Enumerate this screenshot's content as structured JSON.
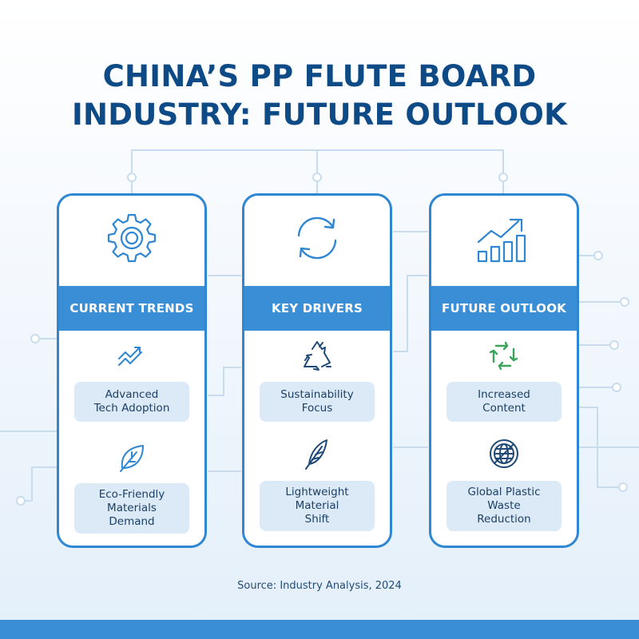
{
  "title": {
    "line1": "CHINA’S PP FLUTE BOARD",
    "line2": "INDUSTRY: FUTURE OUTLOOK"
  },
  "colors": {
    "title": "#0d4a86",
    "accent": "#3a8ed6",
    "card_border": "#2f86d2",
    "pill_bg": "#dceaf7",
    "circuit": "#c9dced",
    "icon_green": "#3aa55a"
  },
  "columns": [
    {
      "header": "CURRENT TRENDS",
      "top_icon": "gear-icon",
      "items": [
        {
          "icon": "trend-up-arrows-icon",
          "label": "Advanced\nTech Adoption"
        },
        {
          "icon": "leaf-icon",
          "label": "Eco-Friendly\nMaterials\nDemand"
        }
      ]
    },
    {
      "header": "KEY DRIVERS",
      "top_icon": "refresh-arrows-icon",
      "items": [
        {
          "icon": "recycle-icon",
          "label": "Sustainability\nFocus"
        },
        {
          "icon": "feather-icon",
          "label": "Lightweight\nMaterial\nShift"
        }
      ]
    },
    {
      "header": "FUTURE OUTLOOK",
      "top_icon": "growth-chart-icon",
      "items": [
        {
          "icon": "green-recycle-icon",
          "label": "Increased\nContent"
        },
        {
          "icon": "globe-icon",
          "label": "Global Plastic\nWaste\nReduction"
        }
      ]
    }
  ],
  "source": "Source: Industry Analysis, 2024"
}
